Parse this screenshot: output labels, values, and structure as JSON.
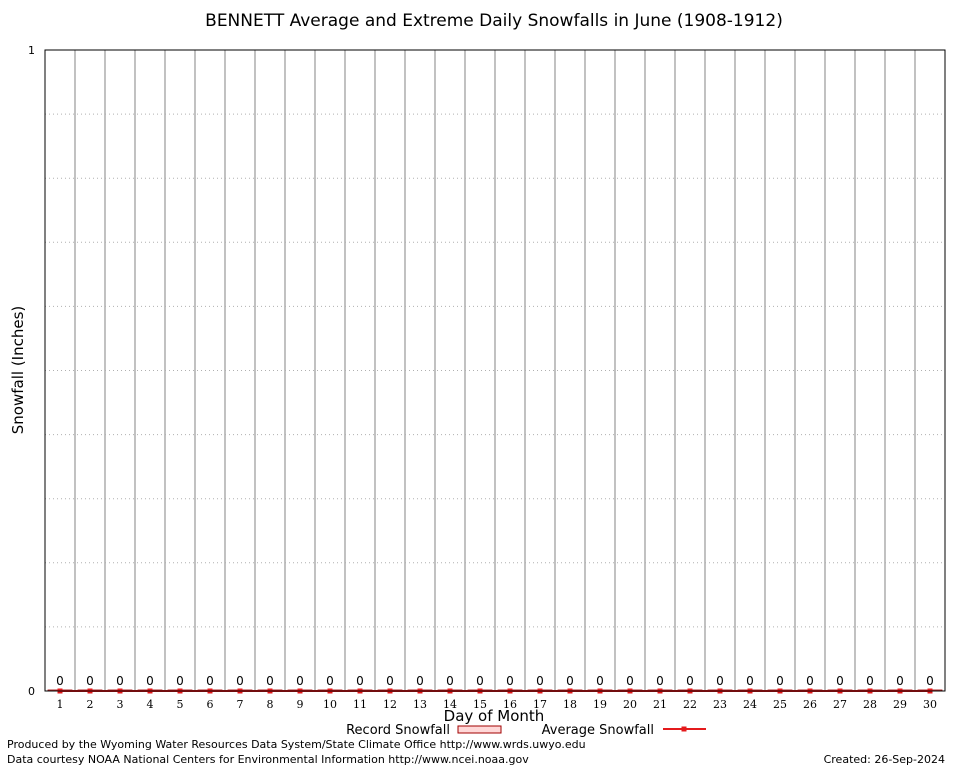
{
  "chart_data": {
    "type": "bar",
    "title": "BENNETT Average and Extreme Daily Snowfalls in June (1908-1912)",
    "xlabel": "Day of Month",
    "ylabel": "Snowfall (Inches)",
    "ylim": [
      0,
      1
    ],
    "yticks": [
      "0",
      "1"
    ],
    "grid": true,
    "legend_position": "bottom",
    "categories": [
      "1",
      "2",
      "3",
      "4",
      "5",
      "6",
      "7",
      "8",
      "9",
      "10",
      "11",
      "12",
      "13",
      "14",
      "15",
      "16",
      "17",
      "18",
      "19",
      "20",
      "21",
      "22",
      "23",
      "24",
      "25",
      "26",
      "27",
      "28",
      "29",
      "30"
    ],
    "series": [
      {
        "name": "Record Snowfall",
        "type": "bar",
        "color": "#a00000",
        "values": [
          0,
          0,
          0,
          0,
          0,
          0,
          0,
          0,
          0,
          0,
          0,
          0,
          0,
          0,
          0,
          0,
          0,
          0,
          0,
          0,
          0,
          0,
          0,
          0,
          0,
          0,
          0,
          0,
          0,
          0
        ],
        "labels": [
          "0",
          "0",
          "0",
          "0",
          "0",
          "0",
          "0",
          "0",
          "0",
          "0",
          "0",
          "0",
          "0",
          "0",
          "0",
          "0",
          "0",
          "0",
          "0",
          "0",
          "0",
          "0",
          "0",
          "0",
          "0",
          "0",
          "0",
          "0",
          "0",
          "0"
        ]
      },
      {
        "name": "Average Snowfall",
        "type": "line",
        "color": "#e41a1c",
        "values": [
          0,
          0,
          0,
          0,
          0,
          0,
          0,
          0,
          0,
          0,
          0,
          0,
          0,
          0,
          0,
          0,
          0,
          0,
          0,
          0,
          0,
          0,
          0,
          0,
          0,
          0,
          0,
          0,
          0,
          0
        ]
      }
    ]
  },
  "footer": {
    "produced_by": "Produced by the Wyoming Water Resources Data System/State Climate Office http://www.wrds.uwyo.edu",
    "data_courtesy": "Data courtesy NOAA National Centers for Environmental Information http://www.ncei.noaa.gov",
    "created": "Created:  26-Sep-2024"
  }
}
